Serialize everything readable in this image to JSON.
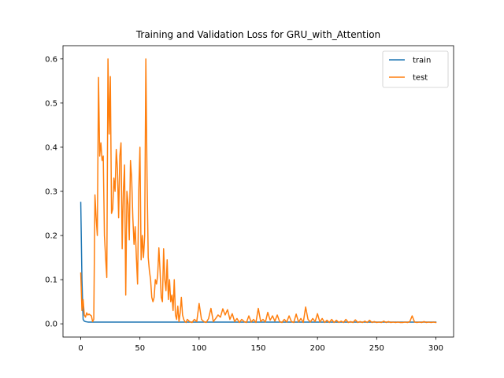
{
  "chart_data": {
    "type": "line",
    "title": "Training and Validation Loss for GRU_with_Attention",
    "xlabel": "",
    "ylabel": "",
    "xlim": [
      -15,
      315
    ],
    "ylim": [
      -0.03,
      0.63
    ],
    "xticks": [
      0,
      50,
      100,
      150,
      200,
      250,
      300
    ],
    "yticks": [
      0.0,
      0.1,
      0.2,
      0.3,
      0.4,
      0.5,
      0.6
    ],
    "xtick_labels": [
      "0",
      "50",
      "100",
      "150",
      "200",
      "250",
      "300"
    ],
    "ytick_labels": [
      "0.0",
      "0.1",
      "0.2",
      "0.3",
      "0.4",
      "0.5",
      "0.6"
    ],
    "legend_position": "upper-right",
    "grid": false,
    "series": [
      {
        "name": "train",
        "color": "#1f77b4",
        "points": [
          [
            0,
            0.275
          ],
          [
            1,
            0.1
          ],
          [
            2,
            0.01
          ],
          [
            3,
            0.006
          ],
          [
            4,
            0.005
          ],
          [
            6,
            0.004
          ],
          [
            10,
            0.004
          ],
          [
            20,
            0.004
          ],
          [
            50,
            0.004
          ],
          [
            100,
            0.004
          ],
          [
            150,
            0.004
          ],
          [
            200,
            0.004
          ],
          [
            250,
            0.004
          ],
          [
            300,
            0.004
          ]
        ]
      },
      {
        "name": "test",
        "color": "#ff7f0e",
        "points": [
          [
            0,
            0.115
          ],
          [
            1,
            0.03
          ],
          [
            2,
            0.055
          ],
          [
            3,
            0.02
          ],
          [
            4,
            0.015
          ],
          [
            5,
            0.025
          ],
          [
            6,
            0.02
          ],
          [
            7,
            0.022
          ],
          [
            8,
            0.02
          ],
          [
            9,
            0.018
          ],
          [
            10,
            0.005
          ],
          [
            11,
            0.01
          ],
          [
            12,
            0.292
          ],
          [
            13,
            0.24
          ],
          [
            14,
            0.2
          ],
          [
            15,
            0.558
          ],
          [
            16,
            0.38
          ],
          [
            17,
            0.41
          ],
          [
            18,
            0.37
          ],
          [
            19,
            0.38
          ],
          [
            20,
            0.2
          ],
          [
            21,
            0.15
          ],
          [
            22,
            0.105
          ],
          [
            23,
            0.6
          ],
          [
            24,
            0.43
          ],
          [
            25,
            0.56
          ],
          [
            26,
            0.25
          ],
          [
            27,
            0.26
          ],
          [
            28,
            0.33
          ],
          [
            29,
            0.3
          ],
          [
            30,
            0.395
          ],
          [
            31,
            0.35
          ],
          [
            32,
            0.24
          ],
          [
            33,
            0.38
          ],
          [
            34,
            0.41
          ],
          [
            35,
            0.17
          ],
          [
            36,
            0.3
          ],
          [
            37,
            0.36
          ],
          [
            38,
            0.065
          ],
          [
            39,
            0.3
          ],
          [
            40,
            0.27
          ],
          [
            41,
            0.19
          ],
          [
            42,
            0.37
          ],
          [
            43,
            0.33
          ],
          [
            44,
            0.24
          ],
          [
            45,
            0.18
          ],
          [
            46,
            0.22
          ],
          [
            47,
            0.15
          ],
          [
            48,
            0.09
          ],
          [
            49,
            0.3
          ],
          [
            50,
            0.4
          ],
          [
            51,
            0.145
          ],
          [
            52,
            0.2
          ],
          [
            53,
            0.15
          ],
          [
            54,
            0.2
          ],
          [
            55,
            0.6
          ],
          [
            56,
            0.33
          ],
          [
            57,
            0.15
          ],
          [
            58,
            0.12
          ],
          [
            59,
            0.1
          ],
          [
            60,
            0.06
          ],
          [
            61,
            0.05
          ],
          [
            62,
            0.06
          ],
          [
            63,
            0.1
          ],
          [
            64,
            0.09
          ],
          [
            65,
            0.11
          ],
          [
            66,
            0.172
          ],
          [
            67,
            0.12
          ],
          [
            68,
            0.06
          ],
          [
            69,
            0.05
          ],
          [
            70,
            0.17
          ],
          [
            71,
            0.1
          ],
          [
            72,
            0.075
          ],
          [
            73,
            0.145
          ],
          [
            74,
            0.055
          ],
          [
            75,
            0.1
          ],
          [
            76,
            0.05
          ],
          [
            77,
            0.065
          ],
          [
            78,
            0.03
          ],
          [
            79,
            0.1
          ],
          [
            80,
            0.02
          ],
          [
            81,
            0.01
          ],
          [
            82,
            0.04
          ],
          [
            83,
            0.005
          ],
          [
            84,
            0.025
          ],
          [
            85,
            0.06
          ],
          [
            86,
            0.02
          ],
          [
            87,
            0.01
          ],
          [
            88,
            0.005
          ],
          [
            89,
            0.003
          ],
          [
            90,
            0.01
          ],
          [
            92,
            0.005
          ],
          [
            94,
            0.003
          ],
          [
            96,
            0.01
          ],
          [
            98,
            0.005
          ],
          [
            100,
            0.046
          ],
          [
            102,
            0.01
          ],
          [
            104,
            0.005
          ],
          [
            106,
            0.003
          ],
          [
            108,
            0.012
          ],
          [
            110,
            0.035
          ],
          [
            112,
            0.005
          ],
          [
            114,
            0.012
          ],
          [
            116,
            0.02
          ],
          [
            118,
            0.015
          ],
          [
            120,
            0.034
          ],
          [
            122,
            0.02
          ],
          [
            124,
            0.032
          ],
          [
            126,
            0.01
          ],
          [
            128,
            0.023
          ],
          [
            130,
            0.005
          ],
          [
            132,
            0.012
          ],
          [
            134,
            0.003
          ],
          [
            136,
            0.01
          ],
          [
            138,
            0.005
          ],
          [
            140,
            0.003
          ],
          [
            142,
            0.018
          ],
          [
            144,
            0.004
          ],
          [
            146,
            0.01
          ],
          [
            148,
            0.003
          ],
          [
            150,
            0.035
          ],
          [
            152,
            0.005
          ],
          [
            154,
            0.01
          ],
          [
            156,
            0.004
          ],
          [
            158,
            0.026
          ],
          [
            160,
            0.008
          ],
          [
            162,
            0.018
          ],
          [
            164,
            0.006
          ],
          [
            166,
            0.02
          ],
          [
            168,
            0.005
          ],
          [
            170,
            0.003
          ],
          [
            172,
            0.01
          ],
          [
            174,
            0.004
          ],
          [
            176,
            0.018
          ],
          [
            178,
            0.005
          ],
          [
            180,
            0.003
          ],
          [
            182,
            0.022
          ],
          [
            184,
            0.004
          ],
          [
            186,
            0.012
          ],
          [
            188,
            0.003
          ],
          [
            190,
            0.038
          ],
          [
            192,
            0.01
          ],
          [
            194,
            0.004
          ],
          [
            196,
            0.012
          ],
          [
            198,
            0.005
          ],
          [
            200,
            0.023
          ],
          [
            202,
            0.004
          ],
          [
            204,
            0.012
          ],
          [
            206,
            0.003
          ],
          [
            208,
            0.008
          ],
          [
            210,
            0.003
          ],
          [
            212,
            0.01
          ],
          [
            214,
            0.003
          ],
          [
            216,
            0.008
          ],
          [
            218,
            0.003
          ],
          [
            220,
            0.006
          ],
          [
            222,
            0.003
          ],
          [
            224,
            0.01
          ],
          [
            226,
            0.003
          ],
          [
            228,
            0.005
          ],
          [
            230,
            0.003
          ],
          [
            232,
            0.009
          ],
          [
            234,
            0.003
          ],
          [
            236,
            0.005
          ],
          [
            238,
            0.003
          ],
          [
            240,
            0.006
          ],
          [
            242,
            0.003
          ],
          [
            244,
            0.008
          ],
          [
            246,
            0.003
          ],
          [
            248,
            0.005
          ],
          [
            250,
            0.003
          ],
          [
            252,
            0.004
          ],
          [
            254,
            0.003
          ],
          [
            256,
            0.006
          ],
          [
            258,
            0.003
          ],
          [
            260,
            0.005
          ],
          [
            262,
            0.003
          ],
          [
            264,
            0.004
          ],
          [
            266,
            0.003
          ],
          [
            268,
            0.004
          ],
          [
            270,
            0.003
          ],
          [
            272,
            0.003
          ],
          [
            274,
            0.004
          ],
          [
            276,
            0.003
          ],
          [
            278,
            0.005
          ],
          [
            280,
            0.018
          ],
          [
            282,
            0.004
          ],
          [
            284,
            0.003
          ],
          [
            286,
            0.004
          ],
          [
            288,
            0.003
          ],
          [
            290,
            0.005
          ],
          [
            292,
            0.003
          ],
          [
            294,
            0.004
          ],
          [
            296,
            0.003
          ],
          [
            298,
            0.004
          ],
          [
            300,
            0.003
          ]
        ]
      }
    ]
  }
}
